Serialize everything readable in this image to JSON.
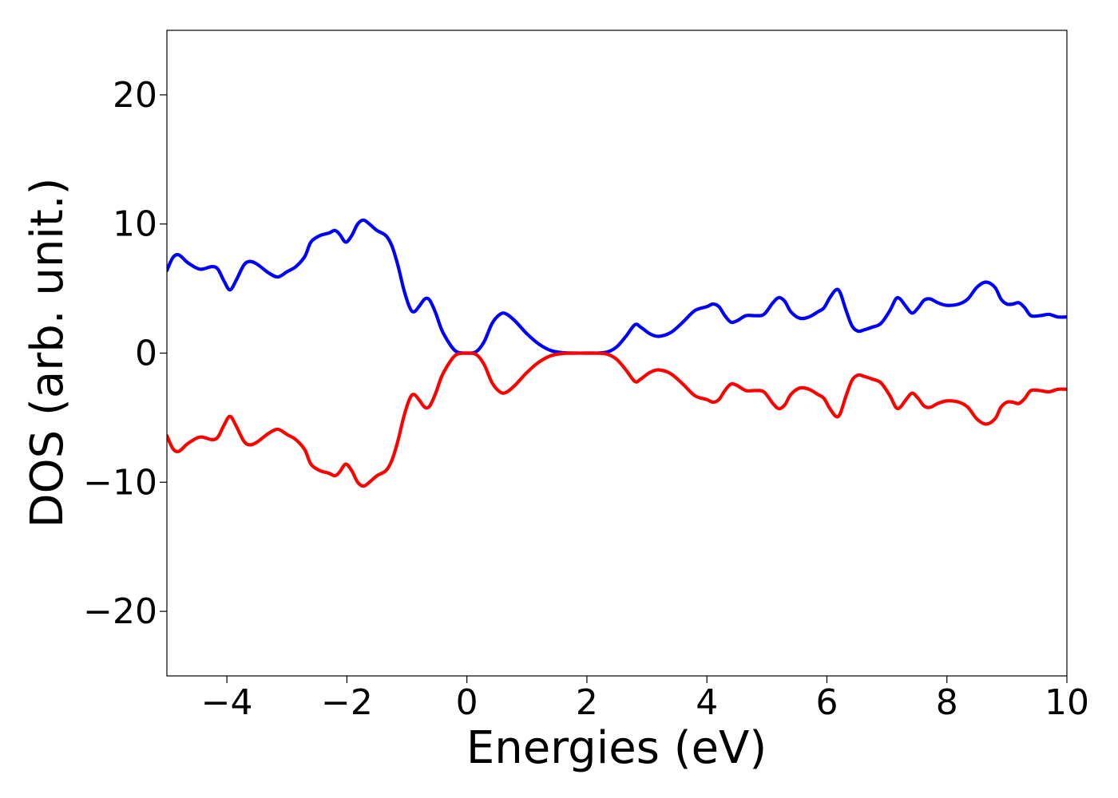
{
  "chart_data": {
    "type": "line",
    "title": "",
    "xlabel": "Energies (eV)",
    "ylabel": "DOS (arb. unit.)",
    "xlim": [
      -5,
      10
    ],
    "ylim": [
      -25,
      25
    ],
    "x_ticks": [
      -4,
      -2,
      0,
      2,
      4,
      6,
      8,
      10
    ],
    "x_tick_labels": [
      "−4",
      "−2",
      "0",
      "2",
      "4",
      "6",
      "8",
      "10"
    ],
    "y_ticks": [
      -20,
      -10,
      0,
      10,
      20
    ],
    "y_tick_labels": [
      "−20",
      "−10",
      "0",
      "10",
      "20"
    ],
    "grid": false,
    "legend": "none",
    "series": [
      {
        "color": "#0000ff",
        "points": [
          [
            -5.0,
            6.4
          ],
          [
            -4.9,
            7.4
          ],
          [
            -4.8,
            7.6
          ],
          [
            -4.65,
            7.0
          ],
          [
            -4.45,
            6.5
          ],
          [
            -4.25,
            6.7
          ],
          [
            -4.15,
            6.5
          ],
          [
            -4.05,
            5.6
          ],
          [
            -3.95,
            4.9
          ],
          [
            -3.85,
            5.6
          ],
          [
            -3.72,
            6.8
          ],
          [
            -3.62,
            7.1
          ],
          [
            -3.5,
            6.9
          ],
          [
            -3.3,
            6.2
          ],
          [
            -3.15,
            5.9
          ],
          [
            -3.0,
            6.3
          ],
          [
            -2.85,
            6.7
          ],
          [
            -2.7,
            7.5
          ],
          [
            -2.6,
            8.6
          ],
          [
            -2.45,
            9.1
          ],
          [
            -2.3,
            9.3
          ],
          [
            -2.2,
            9.5
          ],
          [
            -2.12,
            9.2
          ],
          [
            -2.02,
            8.6
          ],
          [
            -1.92,
            9.1
          ],
          [
            -1.82,
            10.0
          ],
          [
            -1.72,
            10.3
          ],
          [
            -1.6,
            9.9
          ],
          [
            -1.5,
            9.5
          ],
          [
            -1.35,
            9.1
          ],
          [
            -1.25,
            8.3
          ],
          [
            -1.15,
            6.8
          ],
          [
            -1.05,
            4.9
          ],
          [
            -0.95,
            3.5
          ],
          [
            -0.88,
            3.2
          ],
          [
            -0.8,
            3.6
          ],
          [
            -0.7,
            4.2
          ],
          [
            -0.62,
            4.1
          ],
          [
            -0.52,
            3.1
          ],
          [
            -0.42,
            1.8
          ],
          [
            -0.3,
            0.8
          ],
          [
            -0.2,
            0.2
          ],
          [
            -0.1,
            0.02
          ],
          [
            0.1,
            0.02
          ],
          [
            0.2,
            0.3
          ],
          [
            0.3,
            1.0
          ],
          [
            0.42,
            2.3
          ],
          [
            0.55,
            3.0
          ],
          [
            0.65,
            3.05
          ],
          [
            0.8,
            2.5
          ],
          [
            1.0,
            1.5
          ],
          [
            1.2,
            0.7
          ],
          [
            1.4,
            0.2
          ],
          [
            1.6,
            0.03
          ],
          [
            1.8,
            0.0
          ],
          [
            2.0,
            0.0
          ],
          [
            2.2,
            0.01
          ],
          [
            2.35,
            0.1
          ],
          [
            2.5,
            0.5
          ],
          [
            2.65,
            1.3
          ],
          [
            2.8,
            2.2
          ],
          [
            2.9,
            2.0
          ],
          [
            3.05,
            1.5
          ],
          [
            3.2,
            1.3
          ],
          [
            3.4,
            1.6
          ],
          [
            3.6,
            2.4
          ],
          [
            3.8,
            3.3
          ],
          [
            4.0,
            3.6
          ],
          [
            4.1,
            3.8
          ],
          [
            4.2,
            3.6
          ],
          [
            4.3,
            2.9
          ],
          [
            4.4,
            2.4
          ],
          [
            4.5,
            2.5
          ],
          [
            4.65,
            2.9
          ],
          [
            4.8,
            2.9
          ],
          [
            4.95,
            3.0
          ],
          [
            5.1,
            3.9
          ],
          [
            5.2,
            4.3
          ],
          [
            5.3,
            4.0
          ],
          [
            5.4,
            3.2
          ],
          [
            5.55,
            2.7
          ],
          [
            5.7,
            2.8
          ],
          [
            5.85,
            3.2
          ],
          [
            5.95,
            3.5
          ],
          [
            6.05,
            4.3
          ],
          [
            6.15,
            4.9
          ],
          [
            6.22,
            4.7
          ],
          [
            6.32,
            3.3
          ],
          [
            6.42,
            2.1
          ],
          [
            6.52,
            1.7
          ],
          [
            6.62,
            1.8
          ],
          [
            6.75,
            2.0
          ],
          [
            6.9,
            2.3
          ],
          [
            7.05,
            3.3
          ],
          [
            7.15,
            4.2
          ],
          [
            7.22,
            4.2
          ],
          [
            7.32,
            3.6
          ],
          [
            7.42,
            3.1
          ],
          [
            7.52,
            3.5
          ],
          [
            7.62,
            4.1
          ],
          [
            7.72,
            4.2
          ],
          [
            7.85,
            3.9
          ],
          [
            8.0,
            3.7
          ],
          [
            8.2,
            3.8
          ],
          [
            8.35,
            4.2
          ],
          [
            8.5,
            5.1
          ],
          [
            8.65,
            5.5
          ],
          [
            8.8,
            5.1
          ],
          [
            8.9,
            4.2
          ],
          [
            9.0,
            3.8
          ],
          [
            9.1,
            3.8
          ],
          [
            9.2,
            3.9
          ],
          [
            9.3,
            3.5
          ],
          [
            9.4,
            2.9
          ],
          [
            9.55,
            2.9
          ],
          [
            9.7,
            3.0
          ],
          [
            9.85,
            2.8
          ],
          [
            10.0,
            2.8
          ]
        ]
      },
      {
        "color": "#ff0000",
        "points": [
          [
            -5.0,
            -6.4
          ],
          [
            -4.9,
            -7.4
          ],
          [
            -4.8,
            -7.6
          ],
          [
            -4.65,
            -7.0
          ],
          [
            -4.45,
            -6.5
          ],
          [
            -4.25,
            -6.7
          ],
          [
            -4.15,
            -6.5
          ],
          [
            -4.05,
            -5.6
          ],
          [
            -3.95,
            -4.9
          ],
          [
            -3.85,
            -5.6
          ],
          [
            -3.72,
            -6.8
          ],
          [
            -3.62,
            -7.1
          ],
          [
            -3.5,
            -6.9
          ],
          [
            -3.3,
            -6.2
          ],
          [
            -3.15,
            -5.9
          ],
          [
            -3.0,
            -6.3
          ],
          [
            -2.85,
            -6.7
          ],
          [
            -2.7,
            -7.5
          ],
          [
            -2.6,
            -8.6
          ],
          [
            -2.45,
            -9.1
          ],
          [
            -2.3,
            -9.3
          ],
          [
            -2.2,
            -9.5
          ],
          [
            -2.12,
            -9.2
          ],
          [
            -2.02,
            -8.6
          ],
          [
            -1.92,
            -9.1
          ],
          [
            -1.82,
            -10.0
          ],
          [
            -1.72,
            -10.3
          ],
          [
            -1.6,
            -9.9
          ],
          [
            -1.5,
            -9.5
          ],
          [
            -1.35,
            -9.1
          ],
          [
            -1.25,
            -8.3
          ],
          [
            -1.15,
            -6.8
          ],
          [
            -1.05,
            -4.9
          ],
          [
            -0.95,
            -3.5
          ],
          [
            -0.88,
            -3.2
          ],
          [
            -0.8,
            -3.6
          ],
          [
            -0.7,
            -4.2
          ],
          [
            -0.62,
            -4.1
          ],
          [
            -0.52,
            -3.1
          ],
          [
            -0.42,
            -1.8
          ],
          [
            -0.3,
            -0.8
          ],
          [
            -0.2,
            -0.2
          ],
          [
            -0.1,
            -0.02
          ],
          [
            0.1,
            -0.02
          ],
          [
            0.2,
            -0.3
          ],
          [
            0.3,
            -1.0
          ],
          [
            0.42,
            -2.3
          ],
          [
            0.55,
            -3.0
          ],
          [
            0.65,
            -3.05
          ],
          [
            0.8,
            -2.5
          ],
          [
            1.0,
            -1.5
          ],
          [
            1.2,
            -0.7
          ],
          [
            1.4,
            -0.2
          ],
          [
            1.6,
            -0.03
          ],
          [
            1.8,
            0.0
          ],
          [
            2.0,
            0.0
          ],
          [
            2.2,
            -0.01
          ],
          [
            2.35,
            -0.1
          ],
          [
            2.5,
            -0.5
          ],
          [
            2.65,
            -1.3
          ],
          [
            2.8,
            -2.2
          ],
          [
            2.9,
            -2.0
          ],
          [
            3.05,
            -1.5
          ],
          [
            3.2,
            -1.3
          ],
          [
            3.4,
            -1.6
          ],
          [
            3.6,
            -2.4
          ],
          [
            3.8,
            -3.3
          ],
          [
            4.0,
            -3.6
          ],
          [
            4.1,
            -3.8
          ],
          [
            4.2,
            -3.6
          ],
          [
            4.3,
            -2.9
          ],
          [
            4.4,
            -2.4
          ],
          [
            4.5,
            -2.5
          ],
          [
            4.65,
            -2.9
          ],
          [
            4.8,
            -2.9
          ],
          [
            4.95,
            -3.0
          ],
          [
            5.1,
            -3.9
          ],
          [
            5.2,
            -4.3
          ],
          [
            5.3,
            -4.0
          ],
          [
            5.4,
            -3.2
          ],
          [
            5.55,
            -2.7
          ],
          [
            5.7,
            -2.8
          ],
          [
            5.85,
            -3.2
          ],
          [
            5.95,
            -3.5
          ],
          [
            6.05,
            -4.3
          ],
          [
            6.15,
            -4.9
          ],
          [
            6.22,
            -4.7
          ],
          [
            6.32,
            -3.3
          ],
          [
            6.42,
            -2.1
          ],
          [
            6.52,
            -1.7
          ],
          [
            6.62,
            -1.8
          ],
          [
            6.75,
            -2.0
          ],
          [
            6.9,
            -2.3
          ],
          [
            7.05,
            -3.3
          ],
          [
            7.15,
            -4.2
          ],
          [
            7.22,
            -4.2
          ],
          [
            7.32,
            -3.6
          ],
          [
            7.42,
            -3.1
          ],
          [
            7.52,
            -3.5
          ],
          [
            7.62,
            -4.1
          ],
          [
            7.72,
            -4.2
          ],
          [
            7.85,
            -3.9
          ],
          [
            8.0,
            -3.7
          ],
          [
            8.2,
            -3.8
          ],
          [
            8.35,
            -4.2
          ],
          [
            8.5,
            -5.1
          ],
          [
            8.65,
            -5.5
          ],
          [
            8.8,
            -5.1
          ],
          [
            8.9,
            -4.2
          ],
          [
            9.0,
            -3.8
          ],
          [
            9.1,
            -3.8
          ],
          [
            9.2,
            -3.9
          ],
          [
            9.3,
            -3.5
          ],
          [
            9.4,
            -2.9
          ],
          [
            9.55,
            -2.9
          ],
          [
            9.7,
            -3.0
          ],
          [
            9.85,
            -2.8
          ],
          [
            10.0,
            -2.8
          ]
        ]
      }
    ]
  }
}
